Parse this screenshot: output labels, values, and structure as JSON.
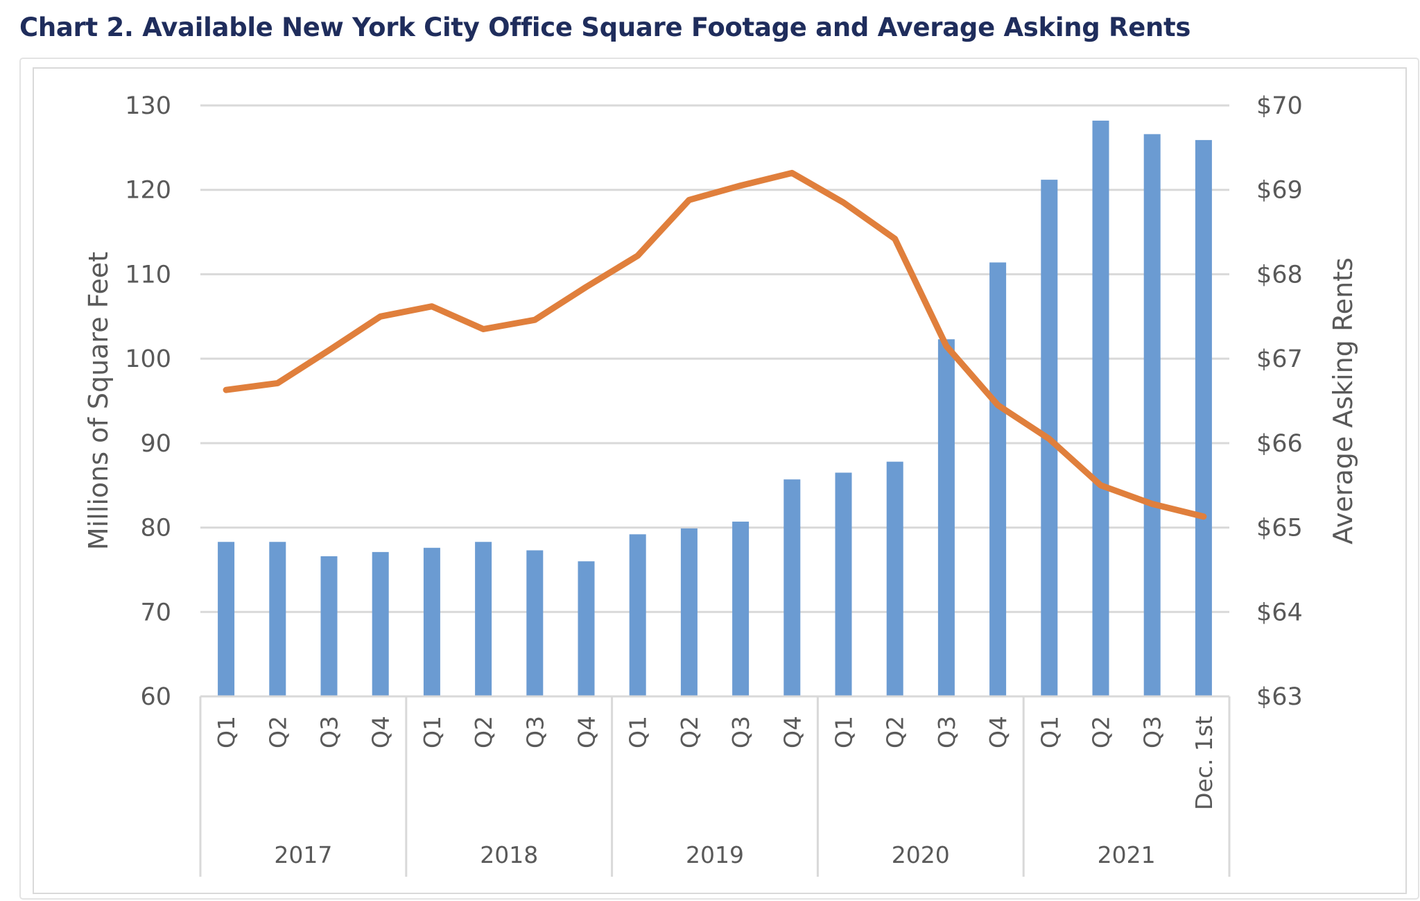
{
  "chart_data": {
    "type": "bar",
    "title": "Chart 2. Available New York City Office Square Footage and Average Asking Rents",
    "categories": [
      "Q1",
      "Q2",
      "Q3",
      "Q4",
      "Q1",
      "Q2",
      "Q3",
      "Q4",
      "Q1",
      "Q2",
      "Q3",
      "Q4",
      "Q1",
      "Q2",
      "Q3",
      "Q4",
      "Q1",
      "Q2",
      "Q3",
      "Dec. 1st"
    ],
    "groups": [
      {
        "label": "2017",
        "count": 4
      },
      {
        "label": "2018",
        "count": 4
      },
      {
        "label": "2019",
        "count": 4
      },
      {
        "label": "2020",
        "count": 4
      },
      {
        "label": "2021",
        "count": 4
      }
    ],
    "series": [
      {
        "type": "bar",
        "axis": "left",
        "color": "#6b9bd2",
        "values": [
          78.3,
          78.3,
          76.6,
          77.1,
          77.6,
          78.3,
          77.3,
          76.0,
          79.2,
          79.9,
          80.7,
          85.7,
          86.5,
          87.8,
          102.3,
          111.4,
          121.2,
          128.2,
          126.6,
          125.9
        ]
      },
      {
        "type": "line",
        "axis": "right",
        "color": "#e07f3c",
        "values": [
          66.63,
          66.71,
          67.1,
          67.5,
          67.62,
          67.35,
          67.46,
          67.85,
          68.22,
          68.88,
          69.05,
          69.2,
          68.85,
          68.42,
          67.15,
          66.45,
          66.05,
          65.5,
          65.28,
          65.13
        ]
      }
    ],
    "y_left": {
      "label": "Millions of Square Feet",
      "min": 60,
      "max": 130,
      "step": 10,
      "ticks": [
        "60",
        "70",
        "80",
        "90",
        "100",
        "110",
        "120",
        "130"
      ]
    },
    "y_right": {
      "label": "Average Asking Rents",
      "min": 63,
      "max": 70,
      "step": 1,
      "ticks": [
        "$63",
        "$64",
        "$65",
        "$66",
        "$67",
        "$68",
        "$69",
        "$70"
      ]
    },
    "grid": true,
    "legend": "none"
  }
}
